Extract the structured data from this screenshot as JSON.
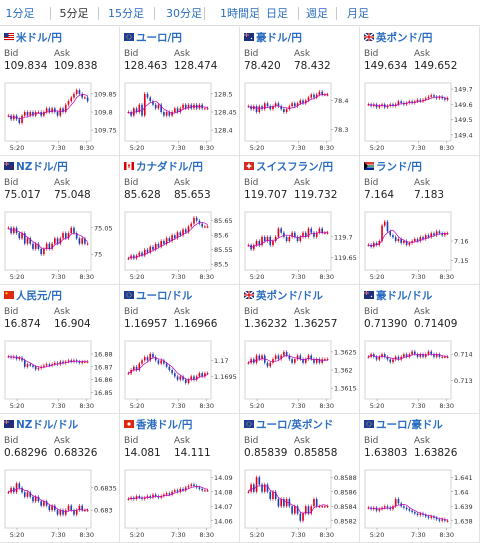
{
  "tabs": [
    {
      "label": "1分足",
      "active": false
    },
    {
      "label": "5分足",
      "active": true
    },
    {
      "label": "15分足",
      "active": false
    },
    {
      "label": "30分足",
      "active": false
    },
    {
      "label": "1時間足",
      "active": false
    },
    {
      "label": "日足",
      "active": false
    },
    {
      "label": "週足",
      "active": false
    },
    {
      "label": "月足",
      "active": false
    }
  ],
  "colors": {
    "link": "#2a6dc0",
    "up_candle": "#e0001a",
    "down_candle": "#1a3fb0",
    "moving_average": "#c000c0"
  },
  "x_ticks": [
    "5:20",
    "7:30",
    "8:30"
  ],
  "pairs": [
    {
      "name": "米ドル/円",
      "bid_label": "Bid",
      "ask_label": "Ask",
      "bid": "109.834",
      "ask": "109.838",
      "flag": "us-flag-icon",
      "y_ticks": [
        "109.85",
        "109.8",
        "109.75"
      ],
      "chart_data": {
        "type": "candlestick",
        "ylim": [
          109.72,
          109.88
        ],
        "close": [
          109.79,
          109.78,
          109.79,
          109.78,
          109.77,
          109.79,
          109.8,
          109.79,
          109.8,
          109.79,
          109.8,
          109.8,
          109.79,
          109.8,
          109.81,
          109.8,
          109.81,
          109.8,
          109.79,
          109.81,
          109.8,
          109.82,
          109.83,
          109.84,
          109.85,
          109.86,
          109.85,
          109.84,
          109.84,
          109.83
        ]
      }
    },
    {
      "name": "ユーロ/円",
      "bid_label": "Bid",
      "ask_label": "Ask",
      "bid": "128.463",
      "ask": "128.474",
      "flag": "eu-flag-icon",
      "y_ticks": [
        "128.5",
        "128.45",
        "128.4"
      ],
      "chart_data": {
        "type": "candlestick",
        "ylim": [
          128.37,
          128.53
        ],
        "close": [
          128.45,
          128.44,
          128.46,
          128.45,
          128.47,
          128.44,
          128.5,
          128.49,
          128.48,
          128.47,
          128.46,
          128.47,
          128.45,
          128.44,
          128.45,
          128.44,
          128.45,
          128.46,
          128.45,
          128.46,
          128.47,
          128.46,
          128.47,
          128.46,
          128.47,
          128.46,
          128.47,
          128.46,
          128.46,
          128.46
        ]
      }
    },
    {
      "name": "豪ドル/円",
      "bid_label": "Bid",
      "ask_label": "Ask",
      "bid": "78.420",
      "ask": "78.432",
      "flag": "au-flag-icon",
      "y_ticks": [
        "78.4",
        "78.3"
      ],
      "chart_data": {
        "type": "candlestick",
        "ylim": [
          78.26,
          78.46
        ],
        "close": [
          78.38,
          78.37,
          78.38,
          78.36,
          78.38,
          78.37,
          78.39,
          78.38,
          78.37,
          78.38,
          78.39,
          78.38,
          78.37,
          78.36,
          78.37,
          78.38,
          78.39,
          78.38,
          78.39,
          78.4,
          78.39,
          78.4,
          78.41,
          78.42,
          78.41,
          78.42,
          78.43,
          78.42,
          78.42,
          78.42
        ]
      }
    },
    {
      "name": "英ポンド/円",
      "bid_label": "Bid",
      "ask_label": "Ask",
      "bid": "149.634",
      "ask": "149.652",
      "flag": "uk-flag-icon",
      "y_ticks": [
        "149.7",
        "149.6",
        "149.5",
        "149.4"
      ],
      "chart_data": {
        "type": "candlestick",
        "ylim": [
          149.36,
          149.74
        ],
        "close": [
          149.6,
          149.59,
          149.6,
          149.58,
          149.59,
          149.6,
          149.58,
          149.59,
          149.6,
          149.59,
          149.6,
          149.62,
          149.61,
          149.6,
          149.61,
          149.62,
          149.61,
          149.62,
          149.63,
          149.62,
          149.63,
          149.64,
          149.65,
          149.66,
          149.65,
          149.64,
          149.65,
          149.64,
          149.63,
          149.64
        ]
      }
    },
    {
      "name": "NZドル/円",
      "bid_label": "Bid",
      "ask_label": "Ask",
      "bid": "75.017",
      "ask": "75.048",
      "flag": "nz-flag-icon",
      "y_ticks": [
        "75.05",
        "75"
      ],
      "chart_data": {
        "type": "candlestick",
        "ylim": [
          74.97,
          75.08
        ],
        "close": [
          75.05,
          75.04,
          75.05,
          75.04,
          75.03,
          75.04,
          75.02,
          75.03,
          75.02,
          75.01,
          75.02,
          75.01,
          75.0,
          75.01,
          75.02,
          75.01,
          75.02,
          75.03,
          75.02,
          75.03,
          75.04,
          75.03,
          75.04,
          75.05,
          75.04,
          75.03,
          75.02,
          75.03,
          75.02,
          75.02
        ]
      }
    },
    {
      "name": "カナダドル/円",
      "bid_label": "Bid",
      "ask_label": "Ask",
      "bid": "85.628",
      "ask": "85.653",
      "flag": "ca-flag-icon",
      "y_ticks": [
        "85.65",
        "85.6",
        "85.55",
        "85.5"
      ],
      "chart_data": {
        "type": "candlestick",
        "ylim": [
          85.48,
          85.68
        ],
        "close": [
          85.52,
          85.53,
          85.52,
          85.53,
          85.54,
          85.53,
          85.55,
          85.54,
          85.56,
          85.55,
          85.57,
          85.56,
          85.58,
          85.57,
          85.59,
          85.58,
          85.6,
          85.59,
          85.61,
          85.6,
          85.62,
          85.61,
          85.63,
          85.64,
          85.66,
          85.65,
          85.64,
          85.63,
          85.63,
          85.63
        ]
      }
    },
    {
      "name": "スイスフラン/円",
      "bid_label": "Bid",
      "ask_label": "Ask",
      "bid": "119.707",
      "ask": "119.732",
      "flag": "ch-flag-icon",
      "y_ticks": [
        "119.7",
        "119.65"
      ],
      "chart_data": {
        "type": "candlestick",
        "ylim": [
          119.62,
          119.76
        ],
        "close": [
          119.68,
          119.67,
          119.68,
          119.69,
          119.68,
          119.7,
          119.69,
          119.7,
          119.68,
          119.69,
          119.7,
          119.72,
          119.71,
          119.7,
          119.69,
          119.7,
          119.71,
          119.7,
          119.69,
          119.7,
          119.71,
          119.7,
          119.72,
          119.71,
          119.7,
          119.71,
          119.72,
          119.71,
          119.71,
          119.71
        ]
      }
    },
    {
      "name": "ランド/円",
      "bid_label": "Bid",
      "ask_label": "Ask",
      "bid": "7.164",
      "ask": "7.183",
      "flag": "za-flag-icon",
      "y_ticks": [
        "7.16",
        "7.15"
      ],
      "chart_data": {
        "type": "candlestick",
        "ylim": [
          7.145,
          7.175
        ],
        "close": [
          7.158,
          7.157,
          7.159,
          7.158,
          7.16,
          7.168,
          7.17,
          7.165,
          7.163,
          7.162,
          7.16,
          7.161,
          7.159,
          7.16,
          7.158,
          7.159,
          7.16,
          7.161,
          7.16,
          7.162,
          7.161,
          7.163,
          7.162,
          7.164,
          7.163,
          7.165,
          7.164,
          7.163,
          7.164,
          7.164
        ]
      }
    },
    {
      "name": "人民元/円",
      "bid_label": "Bid",
      "ask_label": "Ask",
      "bid": "16.874",
      "ask": "16.904",
      "flag": "cn-flag-icon",
      "y_ticks": [
        "16.88",
        "16.87",
        "16.86",
        "16.85"
      ],
      "chart_data": {
        "type": "candlestick",
        "ylim": [
          16.845,
          16.89
        ],
        "close": [
          16.878,
          16.877,
          16.878,
          16.876,
          16.877,
          16.875,
          16.87,
          16.872,
          16.871,
          16.87,
          16.868,
          16.869,
          16.87,
          16.871,
          16.872,
          16.871,
          16.872,
          16.873,
          16.872,
          16.874,
          16.873,
          16.874,
          16.875,
          16.874,
          16.875,
          16.874,
          16.873,
          16.874,
          16.874,
          16.874
        ]
      }
    },
    {
      "name": "ユーロ/ドル",
      "bid_label": "Bid",
      "ask_label": "Ask",
      "bid": "1.16957",
      "ask": "1.16966",
      "flag": "eu-flag-icon",
      "y_ticks": [
        "1.17",
        "1.1695"
      ],
      "chart_data": {
        "type": "candlestick",
        "ylim": [
          1.1688,
          1.1706
        ],
        "close": [
          1.1696,
          1.1697,
          1.1698,
          1.1697,
          1.1699,
          1.17,
          1.1701,
          1.17,
          1.1702,
          1.1701,
          1.17,
          1.1699,
          1.17,
          1.1699,
          1.1698,
          1.1697,
          1.1696,
          1.1695,
          1.1694,
          1.1695,
          1.1694,
          1.1693,
          1.1694,
          1.1695,
          1.1694,
          1.1695,
          1.1696,
          1.1695,
          1.1696,
          1.1696
        ]
      }
    },
    {
      "name": "英ポンド/ドル",
      "bid_label": "Bid",
      "ask_label": "Ask",
      "bid": "1.36232",
      "ask": "1.36257",
      "flag": "uk-flag-icon",
      "y_ticks": [
        "1.3625",
        "1.362",
        "1.3615"
      ],
      "chart_data": {
        "type": "candlestick",
        "ylim": [
          1.3612,
          1.3628
        ],
        "close": [
          1.3622,
          1.3623,
          1.3622,
          1.3624,
          1.3623,
          1.3624,
          1.3622,
          1.3621,
          1.3622,
          1.3623,
          1.3624,
          1.3623,
          1.3624,
          1.3625,
          1.3624,
          1.3623,
          1.3622,
          1.3623,
          1.3624,
          1.3623,
          1.3622,
          1.3623,
          1.3624,
          1.3623,
          1.3622,
          1.3623,
          1.3622,
          1.3623,
          1.3623,
          1.3623
        ]
      }
    },
    {
      "name": "豪ドル/ドル",
      "bid_label": "Bid",
      "ask_label": "Ask",
      "bid": "0.71390",
      "ask": "0.71409",
      "flag": "au-flag-icon",
      "y_ticks": [
        "0.714",
        "0.713"
      ],
      "chart_data": {
        "type": "candlestick",
        "ylim": [
          0.7123,
          0.7145
        ],
        "close": [
          0.7139,
          0.714,
          0.7139,
          0.7138,
          0.7139,
          0.714,
          0.7139,
          0.7138,
          0.7137,
          0.7138,
          0.7139,
          0.7138,
          0.7139,
          0.714,
          0.7139,
          0.714,
          0.7141,
          0.714,
          0.7139,
          0.714,
          0.7139,
          0.714,
          0.7141,
          0.714,
          0.7139,
          0.714,
          0.7139,
          0.7139,
          0.7139,
          0.7139
        ]
      }
    },
    {
      "name": "NZドル/ドル",
      "bid_label": "Bid",
      "ask_label": "Ask",
      "bid": "0.68296",
      "ask": "0.68326",
      "flag": "nz-flag-icon",
      "y_ticks": [
        "0.6835",
        "0.683"
      ],
      "chart_data": {
        "type": "candlestick",
        "ylim": [
          0.6826,
          0.6839
        ],
        "close": [
          0.6834,
          0.6835,
          0.6834,
          0.6836,
          0.6835,
          0.6834,
          0.6833,
          0.6834,
          0.6833,
          0.6832,
          0.6833,
          0.6832,
          0.6831,
          0.6832,
          0.6831,
          0.683,
          0.6831,
          0.683,
          0.6829,
          0.683,
          0.6829,
          0.683,
          0.6831,
          0.683,
          0.6829,
          0.683,
          0.6831,
          0.683,
          0.683,
          0.683
        ]
      }
    },
    {
      "name": "香港ドル/円",
      "bid_label": "Bid",
      "ask_label": "Ask",
      "bid": "14.081",
      "ask": "14.111",
      "flag": "hk-flag-icon",
      "y_ticks": [
        "14.09",
        "14.08",
        "14.07",
        "14.06"
      ],
      "chart_data": {
        "type": "candlestick",
        "ylim": [
          14.055,
          14.095
        ],
        "close": [
          14.075,
          14.076,
          14.075,
          14.077,
          14.076,
          14.075,
          14.076,
          14.077,
          14.076,
          14.078,
          14.077,
          14.076,
          14.077,
          14.078,
          14.079,
          14.078,
          14.08,
          14.081,
          14.08,
          14.082,
          14.081,
          14.083,
          14.084,
          14.085,
          14.084,
          14.083,
          14.082,
          14.081,
          14.081,
          14.081
        ]
      }
    },
    {
      "name": "ユーロ/英ポンド",
      "bid_label": "Bid",
      "ask_label": "Ask",
      "bid": "0.85839",
      "ask": "0.85858",
      "flag": "eu-flag-icon",
      "y_ticks": [
        "0.8588",
        "0.8586",
        "0.8584",
        "0.8582"
      ],
      "chart_data": {
        "type": "candlestick",
        "ylim": [
          0.8581,
          0.8589
        ],
        "close": [
          0.8586,
          0.8587,
          0.8586,
          0.8588,
          0.8587,
          0.8586,
          0.8587,
          0.8586,
          0.8585,
          0.8586,
          0.8585,
          0.8584,
          0.8585,
          0.8584,
          0.8585,
          0.8584,
          0.8583,
          0.8584,
          0.8583,
          0.8582,
          0.8583,
          0.8584,
          0.8583,
          0.8584,
          0.8585,
          0.8584,
          0.8584,
          0.8584,
          0.8584,
          0.8584
        ]
      }
    },
    {
      "name": "ユーロ/豪ドル",
      "bid_label": "Bid",
      "ask_label": "Ask",
      "bid": "1.63803",
      "ask": "1.63826",
      "flag": "eu-flag-icon",
      "y_ticks": [
        "1.641",
        "1.64",
        "1.639",
        "1.638"
      ],
      "chart_data": {
        "type": "candlestick",
        "ylim": [
          1.6375,
          1.6415
        ],
        "close": [
          1.6389,
          1.6388,
          1.6389,
          1.6387,
          1.6388,
          1.6389,
          1.639,
          1.6389,
          1.6388,
          1.639,
          1.6395,
          1.6392,
          1.639,
          1.6389,
          1.6388,
          1.6387,
          1.6386,
          1.6385,
          1.6384,
          1.6385,
          1.6384,
          1.6383,
          1.6382,
          1.6383,
          1.6382,
          1.6381,
          1.638,
          1.6381,
          1.638,
          1.638
        ]
      }
    }
  ]
}
